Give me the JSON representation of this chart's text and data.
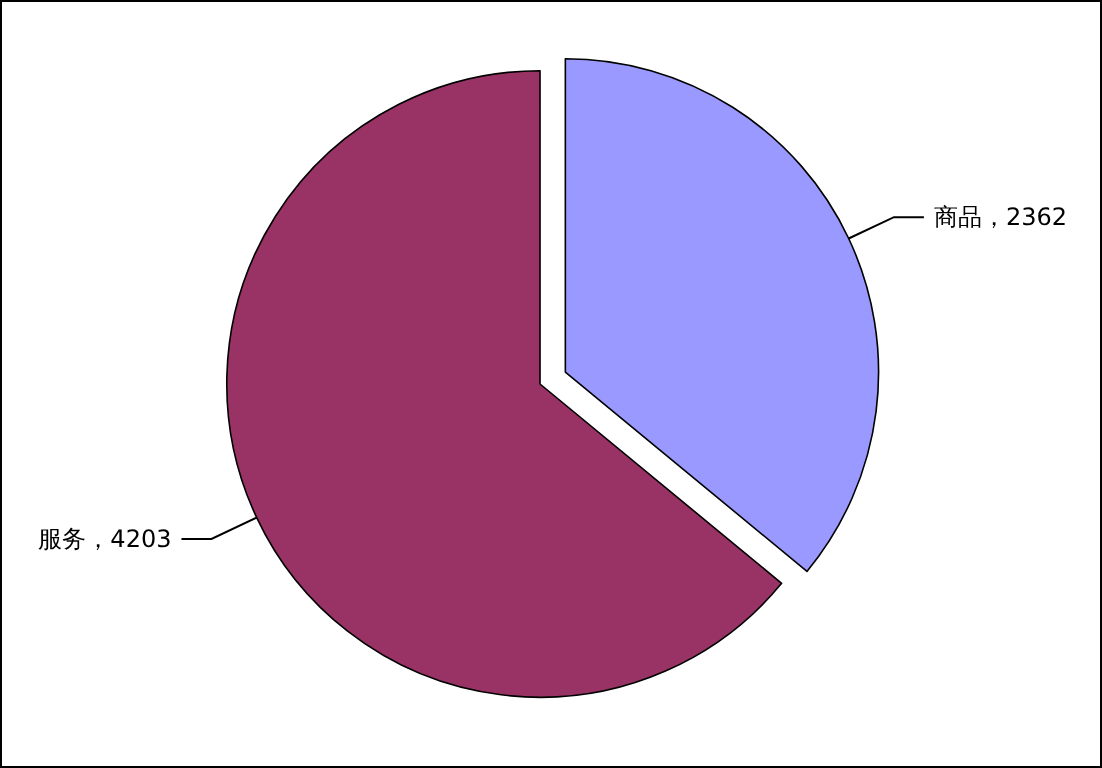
{
  "chart_data": {
    "type": "pie",
    "categories": [
      "商品",
      "服务"
    ],
    "values": [
      2362,
      4203
    ],
    "colors": [
      "#9999ff",
      "#993366"
    ],
    "value_labels": [
      "，2362",
      "，4203"
    ],
    "legend": false
  }
}
